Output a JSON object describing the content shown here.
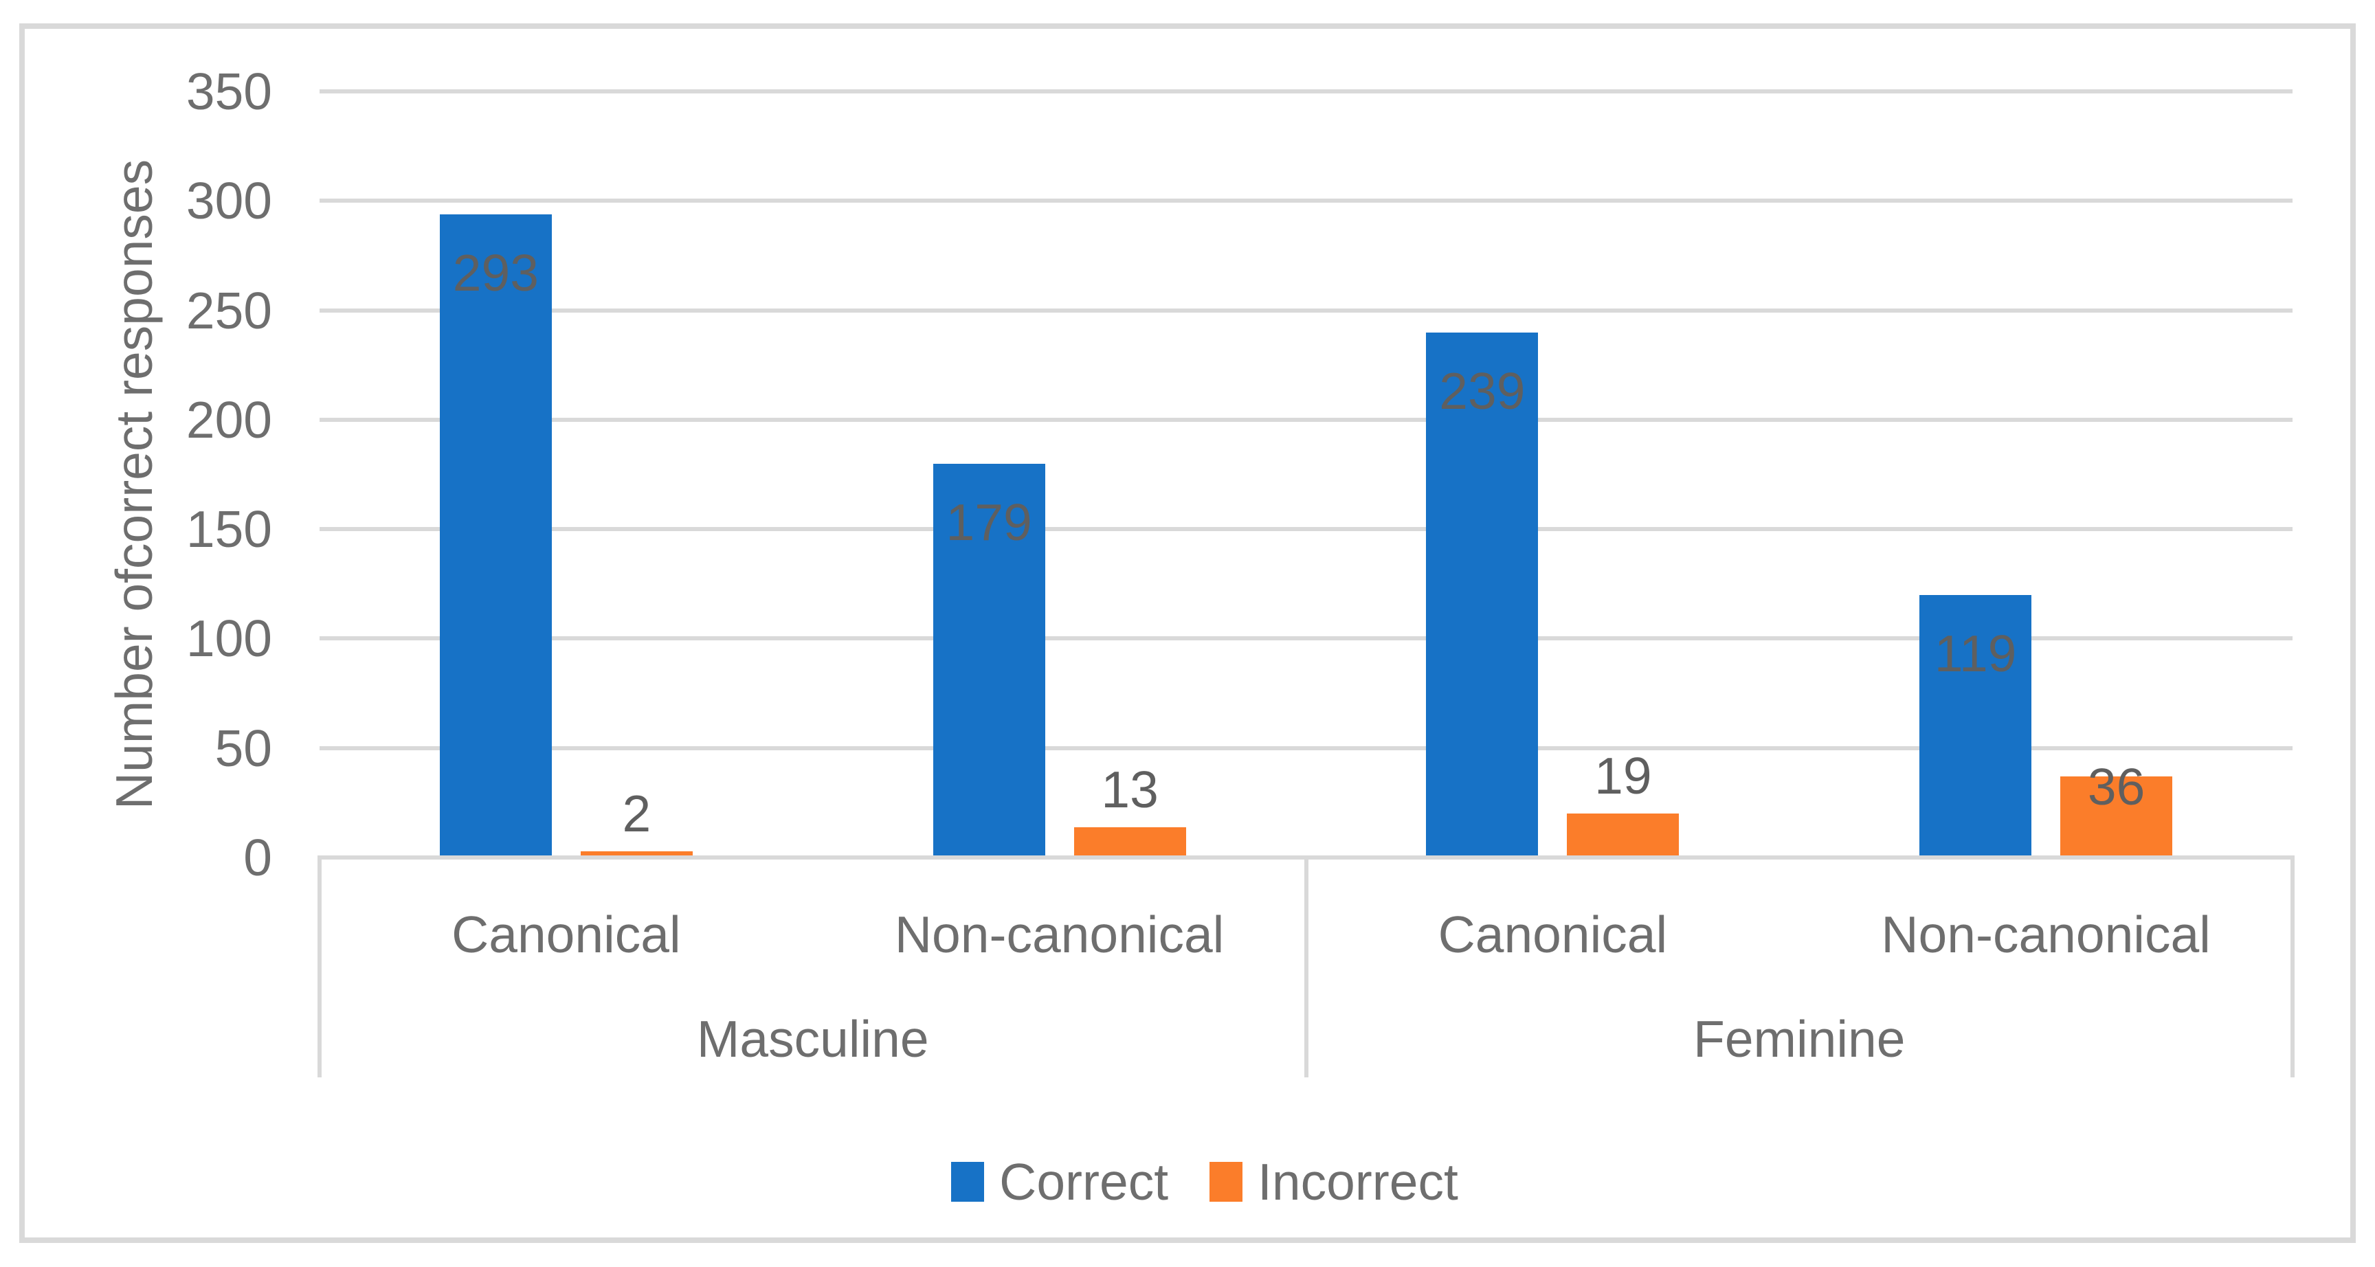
{
  "chart_data": {
    "type": "bar",
    "title": "",
    "xlabel": "",
    "ylabel": "Number ofcorrect responses",
    "ylim": [
      0,
      350
    ],
    "yticks": [
      0,
      50,
      100,
      150,
      200,
      250,
      300,
      350
    ],
    "grid": true,
    "legend_position": "bottom",
    "groups": [
      {
        "label": "Masculine",
        "categories": [
          "Canonical",
          "Non-canonical"
        ]
      },
      {
        "label": "Feminine",
        "categories": [
          "Canonical",
          "Non-canonical"
        ]
      }
    ],
    "categories": [
      "Canonical",
      "Non-canonical",
      "Canonical",
      "Non-canonical"
    ],
    "series": [
      {
        "name": "Correct",
        "color": "#1772C6",
        "values": [
          293,
          179,
          239,
          119
        ],
        "label_placement": [
          "inside-end",
          "inside-end",
          "inside-end",
          "inside-end"
        ]
      },
      {
        "name": "Incorrect",
        "color": "#FB7D2A",
        "values": [
          2,
          13,
          19,
          36
        ],
        "label_placement": [
          "outside-end",
          "outside-end",
          "outside-end",
          "inside-end"
        ]
      }
    ]
  },
  "colors": {
    "grid": "#D9D9D9",
    "frame_border": "#D9D9D9",
    "axis_text": "#6E6E6E",
    "data_label_text": "#5F5F5F",
    "background": "#FFFFFF"
  }
}
